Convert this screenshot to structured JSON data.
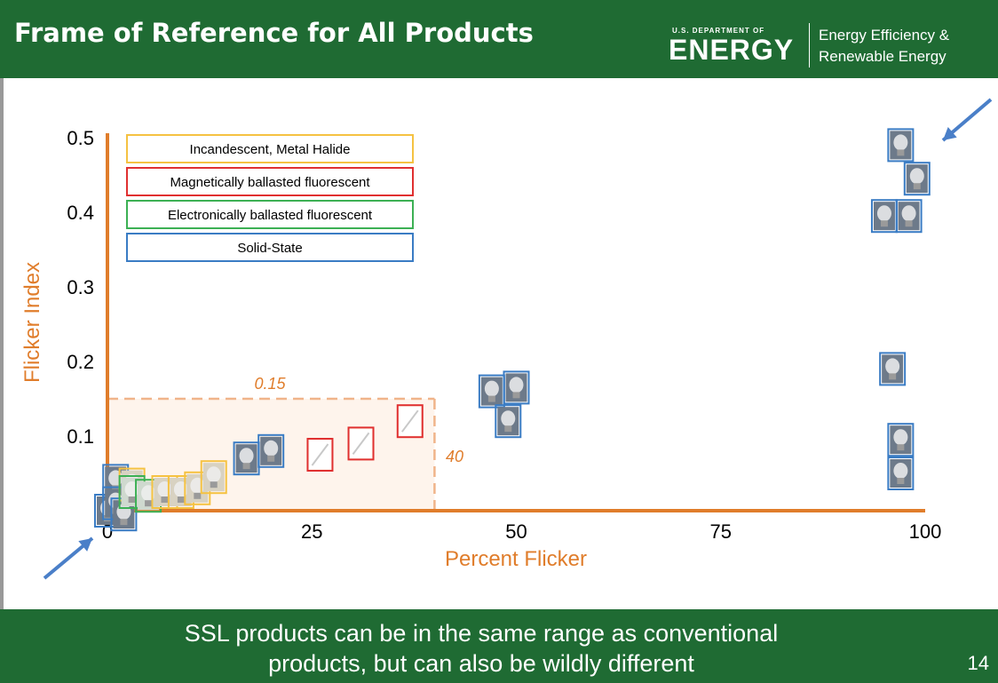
{
  "header": {
    "title": "Frame of Reference for All Products",
    "doe_small": "U.S. DEPARTMENT OF",
    "doe_big": "ENERGY",
    "eere_line1": "Energy Efficiency &",
    "eere_line2": "Renewable Energy"
  },
  "footer": {
    "line1": "SSL products can be in the same range as conventional",
    "line2": "products, but can also be wildly different",
    "page": "14"
  },
  "colors": {
    "header_bg": "#1f6b33",
    "axis": "#e07d2b",
    "incandescent": "#f5c242",
    "magnetic": "#e03030",
    "electronic": "#3cb054",
    "solid_state": "#3a7cc4",
    "arrow": "#4a7fc8"
  },
  "chart_data": {
    "type": "scatter",
    "xlabel": "Percent Flicker",
    "ylabel": "Flicker Index",
    "xlim": [
      0,
      100
    ],
    "ylim": [
      0,
      0.5
    ],
    "xticks": [
      "0",
      "25",
      "50",
      "75",
      "100"
    ],
    "yticks": [
      "0.1",
      "0.2",
      "0.3",
      "0.4",
      "0.5"
    ],
    "legend_position": "top-left",
    "legend": [
      {
        "label": "Incandescent, Metal Halide",
        "category": "incandescent"
      },
      {
        "label": "Magnetically ballasted fluorescent",
        "category": "magnetic"
      },
      {
        "label": "Electronically ballasted fluorescent",
        "category": "electronic"
      },
      {
        "label": "Solid-State",
        "category": "solid_state"
      }
    ],
    "annotations": [
      {
        "text": "0.15",
        "refers_to": "flicker index threshold"
      },
      {
        "text": "40",
        "refers_to": "percent flicker threshold"
      }
    ],
    "reference_box": {
      "x_max": 40,
      "y_max": 0.15
    },
    "points": [
      {
        "category": "solid_state",
        "x": 0,
        "y": 0.0
      },
      {
        "category": "solid_state",
        "x": 1,
        "y": 0.04
      },
      {
        "category": "solid_state",
        "x": 1,
        "y": 0.01
      },
      {
        "category": "solid_state",
        "x": 2,
        "y": -0.005
      },
      {
        "category": "incandescent",
        "x": 3,
        "y": 0.035
      },
      {
        "category": "electronic",
        "x": 3,
        "y": 0.025
      },
      {
        "category": "electronic",
        "x": 5,
        "y": 0.02
      },
      {
        "category": "incandescent",
        "x": 7,
        "y": 0.025
      },
      {
        "category": "incandescent",
        "x": 9,
        "y": 0.025
      },
      {
        "category": "incandescent",
        "x": 11,
        "y": 0.03
      },
      {
        "category": "incandescent",
        "x": 13,
        "y": 0.045
      },
      {
        "category": "solid_state",
        "x": 17,
        "y": 0.07
      },
      {
        "category": "solid_state",
        "x": 20,
        "y": 0.08
      },
      {
        "category": "magnetic",
        "x": 26,
        "y": 0.075
      },
      {
        "category": "magnetic",
        "x": 31,
        "y": 0.09
      },
      {
        "category": "magnetic",
        "x": 37,
        "y": 0.12
      },
      {
        "category": "solid_state",
        "x": 47,
        "y": 0.16
      },
      {
        "category": "solid_state",
        "x": 50,
        "y": 0.165
      },
      {
        "category": "solid_state",
        "x": 49,
        "y": 0.12
      },
      {
        "category": "solid_state",
        "x": 97,
        "y": 0.49
      },
      {
        "category": "solid_state",
        "x": 99,
        "y": 0.445
      },
      {
        "category": "solid_state",
        "x": 95,
        "y": 0.395
      },
      {
        "category": "solid_state",
        "x": 98,
        "y": 0.395
      },
      {
        "category": "solid_state",
        "x": 96,
        "y": 0.19
      },
      {
        "category": "solid_state",
        "x": 97,
        "y": 0.095
      },
      {
        "category": "solid_state",
        "x": 97,
        "y": 0.05
      }
    ]
  }
}
